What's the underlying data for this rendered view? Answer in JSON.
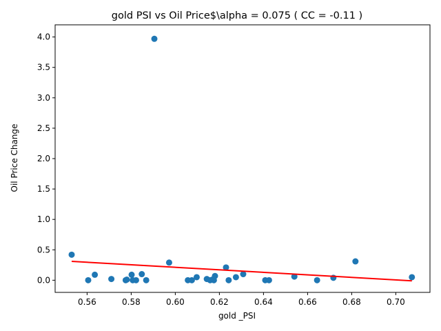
{
  "chart_data": {
    "type": "scatter",
    "title": "gold  PSI vs Oil Price$\\alpha = 0.075 ( CC = -0.11 )",
    "xlabel": "gold _PSI",
    "ylabel": "Oil Price Change",
    "xlim": [
      0.5455,
      0.7155
    ],
    "ylim": [
      -0.2,
      4.2
    ],
    "xticks": [
      0.56,
      0.58,
      0.6,
      0.62,
      0.64,
      0.66,
      0.68,
      0.7
    ],
    "xtick_labels": [
      "0.56",
      "0.58",
      "0.60",
      "0.62",
      "0.64",
      "0.66",
      "0.68",
      "0.70"
    ],
    "yticks": [
      0.0,
      0.5,
      1.0,
      1.5,
      2.0,
      2.5,
      3.0,
      3.5,
      4.0
    ],
    "ytick_labels": [
      "0.0",
      "0.5",
      "1.0",
      "1.5",
      "2.0",
      "2.5",
      "3.0",
      "3.5",
      "4.0"
    ],
    "grid": false,
    "points_color": "#1f77b4",
    "fit_color": "#ff0000",
    "points": [
      {
        "x": 0.553,
        "y": 0.42
      },
      {
        "x": 0.5605,
        "y": 0.0
      },
      {
        "x": 0.5635,
        "y": 0.09
      },
      {
        "x": 0.571,
        "y": 0.02
      },
      {
        "x": 0.5775,
        "y": 0.0
      },
      {
        "x": 0.578,
        "y": 0.01
      },
      {
        "x": 0.5802,
        "y": 0.09
      },
      {
        "x": 0.5807,
        "y": 0.0
      },
      {
        "x": 0.5822,
        "y": 0.0
      },
      {
        "x": 0.5848,
        "y": 0.1
      },
      {
        "x": 0.5868,
        "y": 0.0
      },
      {
        "x": 0.5905,
        "y": 3.97
      },
      {
        "x": 0.5972,
        "y": 0.29
      },
      {
        "x": 0.6057,
        "y": 0.0
      },
      {
        "x": 0.6075,
        "y": 0.0
      },
      {
        "x": 0.6097,
        "y": 0.05
      },
      {
        "x": 0.6143,
        "y": 0.02
      },
      {
        "x": 0.6158,
        "y": 0.0
      },
      {
        "x": 0.6168,
        "y": 0.01
      },
      {
        "x": 0.6175,
        "y": 0.0
      },
      {
        "x": 0.618,
        "y": 0.07
      },
      {
        "x": 0.623,
        "y": 0.21
      },
      {
        "x": 0.6242,
        "y": 0.0
      },
      {
        "x": 0.6275,
        "y": 0.05
      },
      {
        "x": 0.6308,
        "y": 0.1
      },
      {
        "x": 0.6408,
        "y": 0.0
      },
      {
        "x": 0.6425,
        "y": 0.0
      },
      {
        "x": 0.654,
        "y": 0.06
      },
      {
        "x": 0.6643,
        "y": 0.0
      },
      {
        "x": 0.6717,
        "y": 0.04
      },
      {
        "x": 0.6817,
        "y": 0.31
      },
      {
        "x": 0.7073,
        "y": 0.05
      }
    ],
    "fit_line": {
      "x": [
        0.553,
        0.7073
      ],
      "y": [
        0.31,
        -0.01
      ]
    }
  }
}
